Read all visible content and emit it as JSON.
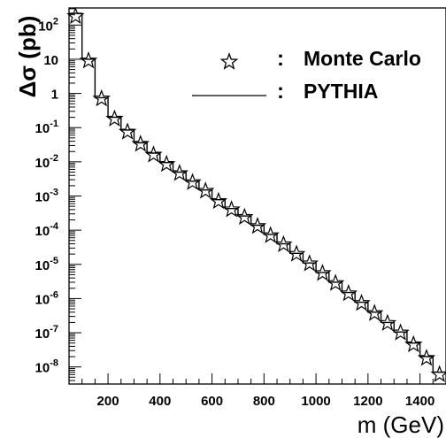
{
  "chart_data": {
    "type": "line",
    "xlabel": "m (GeV)",
    "ylabel": "Δσ (pb)",
    "xlim": [
      50,
      1500
    ],
    "ylim_log10": [
      -8.5,
      2.5
    ],
    "log_y": true,
    "x_ticks": [
      {
        "value": 200,
        "label": "200"
      },
      {
        "value": 400,
        "label": "400"
      },
      {
        "value": 600,
        "label": "600"
      },
      {
        "value": 800,
        "label": "800"
      },
      {
        "value": 1000,
        "label": "1000"
      },
      {
        "value": 1200,
        "label": "1200"
      },
      {
        "value": 1400,
        "label": "1400"
      }
    ],
    "y_ticks": [
      {
        "exp": 2,
        "label": "10",
        "sup": "2"
      },
      {
        "exp": 1,
        "label": "10",
        "sup": ""
      },
      {
        "exp": 0,
        "label": "1",
        "sup": ""
      },
      {
        "exp": -1,
        "label": "10",
        "sup": "-1"
      },
      {
        "exp": -2,
        "label": "10",
        "sup": "-2"
      },
      {
        "exp": -3,
        "label": "10",
        "sup": "-3"
      },
      {
        "exp": -4,
        "label": "10",
        "sup": "-4"
      },
      {
        "exp": -5,
        "label": "10",
        "sup": "-5"
      },
      {
        "exp": -6,
        "label": "10",
        "sup": "-6"
      },
      {
        "exp": -7,
        "label": "10",
        "sup": "-7"
      },
      {
        "exp": -8,
        "label": "10",
        "sup": "-8"
      }
    ],
    "legend_position": "top-right",
    "series": [
      {
        "name": "Monte Carlo",
        "marker": "star",
        "x": [
          75,
          125,
          175,
          225,
          275,
          325,
          375,
          425,
          475,
          525,
          575,
          625,
          675,
          725,
          775,
          825,
          875,
          925,
          975,
          1025,
          1075,
          1125,
          1175,
          1225,
          1275,
          1325,
          1375,
          1425,
          1475
        ],
        "y": [
          180,
          9,
          0.7,
          0.18,
          0.075,
          0.033,
          0.016,
          0.0085,
          0.0046,
          0.0025,
          0.0014,
          0.0007,
          0.0004,
          0.00024,
          0.00013,
          7e-05,
          3.8e-05,
          2e-05,
          1.05e-05,
          5.5e-06,
          2.8e-06,
          1.4e-06,
          7.3e-07,
          3.7e-07,
          1.9e-07,
          1e-07,
          4.5e-08,
          1.8e-08,
          6e-09
        ]
      },
      {
        "name": "PYTHIA",
        "style": "histogram-line",
        "bin_edges": [
          50,
          100,
          150,
          200,
          250,
          300,
          350,
          400,
          450,
          500,
          550,
          600,
          650,
          700,
          750,
          800,
          850,
          900,
          950,
          1000,
          1050,
          1100,
          1150,
          1200,
          1250,
          1300,
          1350,
          1400,
          1450,
          1500
        ],
        "y": [
          220,
          10,
          0.75,
          0.2,
          0.085,
          0.036,
          0.018,
          0.0095,
          0.005,
          0.0027,
          0.0015,
          0.00078,
          0.00043,
          0.00026,
          0.00014,
          7.5e-05,
          4e-05,
          2.1e-05,
          1.1e-05,
          5.8e-06,
          3e-06,
          1.5e-06,
          7.8e-07,
          4e-07,
          2e-07,
          1.05e-07,
          5e-08,
          2e-08,
          7e-09
        ]
      }
    ]
  },
  "legend": {
    "items": [
      {
        "separator": ":",
        "label": "Monte Carlo"
      },
      {
        "separator": ":",
        "label": "PYTHIA"
      }
    ]
  }
}
